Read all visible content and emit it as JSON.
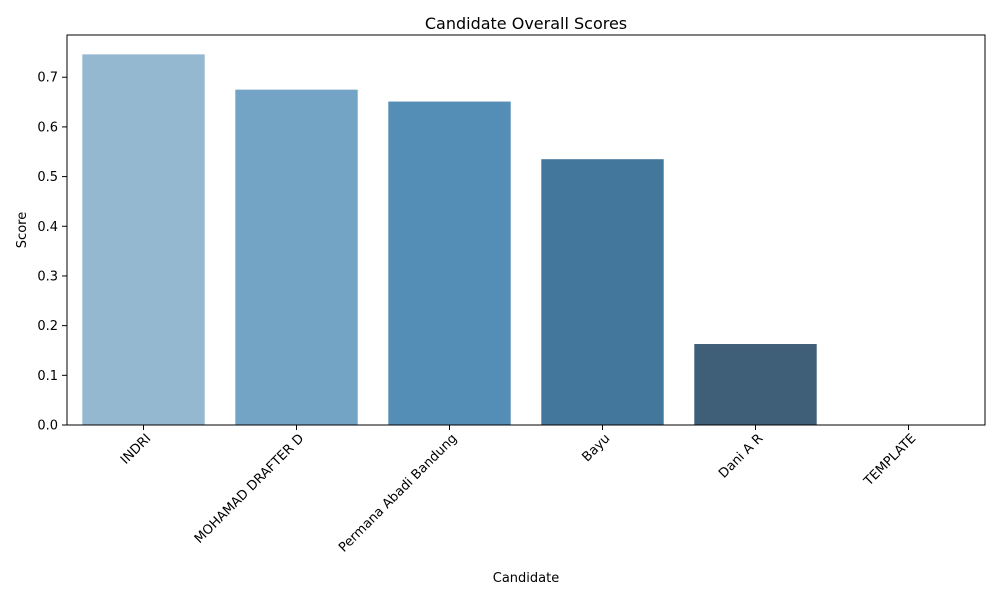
{
  "chart_data": {
    "type": "bar",
    "title": "Candidate Overall Scores",
    "xlabel": "Candidate",
    "ylabel": "Score",
    "categories": [
      "INDRI",
      "MOHAMAD DRAFTER D",
      "Permana Abadi Bandung",
      "Bayu",
      "Dani A R",
      "TEMPLATE"
    ],
    "values": [
      0.746,
      0.675,
      0.651,
      0.535,
      0.163,
      0.0
    ],
    "colors": [
      "#95b8d1",
      "#74a4c5",
      "#548eb7",
      "#43779c",
      "#3f5e78",
      "#3b4a5c"
    ],
    "ylim": [
      0,
      0.785
    ],
    "yticks": [
      "0.0",
      "0.1",
      "0.2",
      "0.3",
      "0.4",
      "0.5",
      "0.6",
      "0.7"
    ],
    "grid": false,
    "legend": "none"
  }
}
